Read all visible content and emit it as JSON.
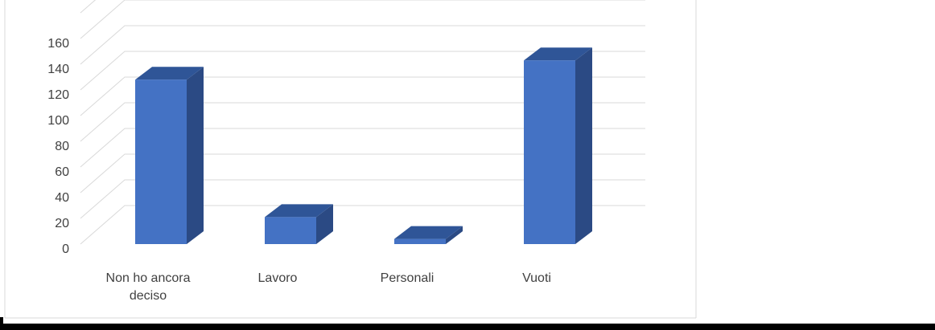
{
  "chart_data": {
    "type": "bar",
    "style": "3d-column",
    "categories": [
      [
        "Non ho ancora",
        "deciso"
      ],
      [
        "Lavoro"
      ],
      [
        "Personali"
      ],
      [
        "Vuoti"
      ]
    ],
    "values": [
      128,
      21,
      4,
      143
    ],
    "y_ticks": [
      "0",
      "20",
      "40",
      "60",
      "80",
      "100",
      "120",
      "140",
      "160"
    ],
    "ylim": [
      0,
      180
    ],
    "grid": true,
    "legend": "none",
    "colors": {
      "front": "#4472C4",
      "top": "#2F5597",
      "side": "#2B4A84",
      "grid": "#D9D9D9",
      "text": "#404040"
    }
  }
}
